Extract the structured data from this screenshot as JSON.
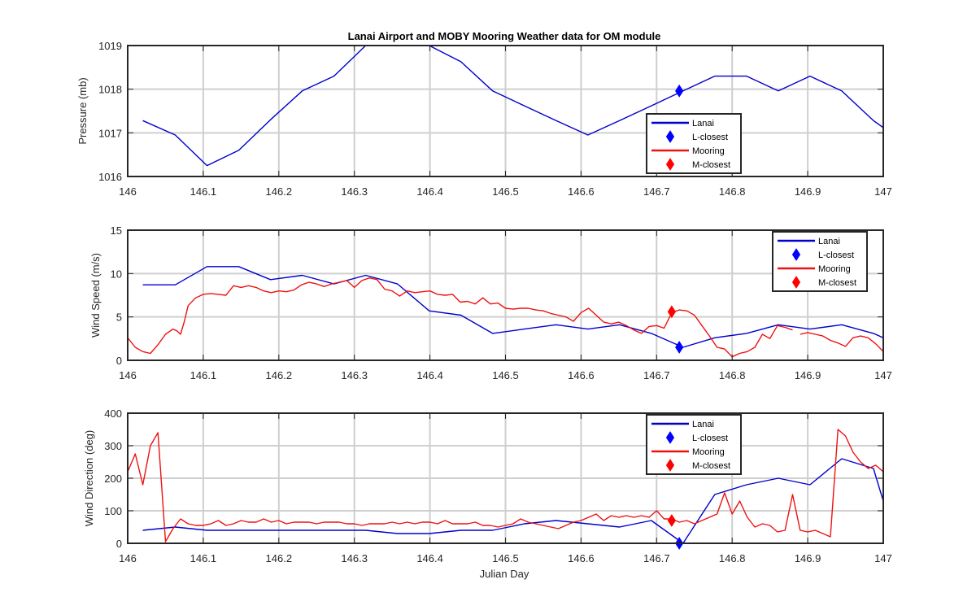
{
  "figure": {
    "title": "Lanai Airport and MOBY Mooring Weather data for OM module",
    "xlabel": "Julian Day"
  },
  "legend_labels": {
    "lanai": "Lanai",
    "l_closest": "L-closest",
    "mooring": "Mooring",
    "m_closest": "M-closest"
  },
  "colors": {
    "lanai": "#0000cc",
    "mooring": "#ee1111",
    "l_marker": "#0000ff",
    "m_marker": "#ff0000",
    "grid": "#cfcfcf"
  },
  "chart_data": [
    {
      "type": "line",
      "ylabel": "Pressure (mb)",
      "xlim": [
        146,
        147
      ],
      "ylim": [
        1016,
        1019
      ],
      "xticks": [
        146,
        146.1,
        146.2,
        146.3,
        146.4,
        146.5,
        146.6,
        146.7,
        146.8,
        146.9,
        147
      ],
      "xtick_labels": [
        "146",
        "146.1",
        "146.2",
        "146.3",
        "146.4",
        "146.5",
        "146.6",
        "146.7",
        "146.8",
        "146.9",
        "147"
      ],
      "yticks": [
        1016,
        1017,
        1018,
        1019
      ],
      "ytick_labels": [
        "1016",
        "1017",
        "1018",
        "1019"
      ],
      "legend_position": "bottom-right",
      "grid": true,
      "series": [
        {
          "name": "Lanai",
          "x": [
            146.02,
            146.063,
            146.105,
            146.147,
            146.189,
            146.231,
            146.273,
            146.315,
            146.357,
            146.399,
            146.441,
            146.483,
            146.525,
            146.567,
            146.609,
            146.651,
            146.693,
            146.735,
            146.777,
            146.819,
            146.861,
            146.903,
            146.945,
            146.987,
            147.0
          ],
          "y": [
            1017.28,
            1016.95,
            1016.25,
            1016.6,
            1017.3,
            1017.96,
            1018.3,
            1019.0,
            1019.0,
            1019.0,
            1018.63,
            1017.96,
            1017.62,
            1017.28,
            1016.95,
            1017.28,
            1017.62,
            1017.96,
            1018.3,
            1018.3,
            1017.96,
            1018.3,
            1017.96,
            1017.28,
            1017.12
          ]
        }
      ],
      "markers": [
        {
          "name": "L-closest",
          "x": 146.73,
          "y": 1017.96
        }
      ]
    },
    {
      "type": "line",
      "ylabel": "Wind Speed (m/s)",
      "xlim": [
        146,
        147
      ],
      "ylim": [
        0,
        15
      ],
      "xticks": [
        146,
        146.1,
        146.2,
        146.3,
        146.4,
        146.5,
        146.6,
        146.7,
        146.8,
        146.9,
        147
      ],
      "xtick_labels": [
        "146",
        "146.1",
        "146.2",
        "146.3",
        "146.4",
        "146.5",
        "146.6",
        "146.7",
        "146.8",
        "146.9",
        "147"
      ],
      "yticks": [
        0,
        5,
        10,
        15
      ],
      "ytick_labels": [
        "0",
        "5",
        "10",
        "15"
      ],
      "legend_position": "top-right",
      "grid": true,
      "series": [
        {
          "name": "Lanai",
          "x": [
            146.02,
            146.063,
            146.105,
            146.147,
            146.189,
            146.231,
            146.273,
            146.315,
            146.357,
            146.399,
            146.441,
            146.483,
            146.525,
            146.567,
            146.609,
            146.651,
            146.693,
            146.735,
            146.777,
            146.819,
            146.861,
            146.903,
            146.945,
            146.987,
            147.0
          ],
          "y": [
            8.7,
            8.7,
            10.8,
            10.8,
            9.3,
            9.8,
            8.8,
            9.8,
            8.8,
            5.7,
            5.2,
            3.1,
            3.6,
            4.1,
            3.6,
            4.1,
            3.1,
            1.5,
            2.6,
            3.1,
            4.1,
            3.6,
            4.1,
            3.1,
            2.6
          ]
        },
        {
          "name": "Mooring",
          "x": [
            146.0,
            146.01,
            146.02,
            146.03,
            146.04,
            146.05,
            146.06,
            146.065,
            146.07,
            146.075,
            146.08,
            146.09,
            146.1,
            146.11,
            146.12,
            146.13,
            146.14,
            146.15,
            146.16,
            146.17,
            146.18,
            146.19,
            146.2,
            146.21,
            146.22,
            146.23,
            146.24,
            146.25,
            146.26,
            146.27,
            146.28,
            146.29,
            146.3,
            146.31,
            146.32,
            146.33,
            146.34,
            146.35,
            146.36,
            146.37,
            146.38,
            146.39,
            146.4,
            146.41,
            146.42,
            146.43,
            146.44,
            146.45,
            146.46,
            146.47,
            146.48,
            146.49,
            146.5,
            146.51,
            146.52,
            146.53,
            146.54,
            146.55,
            146.56,
            146.57,
            146.58,
            146.59,
            146.6,
            146.61,
            146.62,
            146.63,
            146.64,
            146.65,
            146.66,
            146.67,
            146.68,
            146.69,
            146.7,
            146.71,
            146.72,
            146.73,
            146.74,
            146.75,
            146.76,
            146.77,
            146.78,
            146.79,
            146.8,
            146.81,
            146.82,
            146.83,
            146.84,
            146.85,
            146.86,
            146.87,
            146.88
          ],
          "y": [
            2.6,
            1.5,
            1.0,
            0.8,
            1.8,
            3.0,
            3.6,
            3.4,
            3.0,
            4.5,
            6.3,
            7.2,
            7.6,
            7.7,
            7.6,
            7.5,
            8.6,
            8.4,
            8.6,
            8.4,
            8.0,
            7.8,
            8.0,
            7.9,
            8.1,
            8.7,
            9.0,
            8.8,
            8.5,
            8.8,
            9.0,
            9.2,
            8.4,
            9.2,
            9.5,
            9.3,
            8.2,
            8.0,
            7.4,
            8.0,
            7.8,
            7.9,
            8.0,
            7.6,
            7.5,
            7.6,
            6.7,
            6.8,
            6.5,
            7.2,
            6.5,
            6.6,
            6.0,
            5.9,
            6.0,
            6.0,
            5.8,
            5.7,
            5.4,
            5.2,
            5.0,
            4.5,
            5.5,
            6.0,
            5.2,
            4.4,
            4.2,
            4.4,
            4.0,
            3.5,
            3.1,
            3.9,
            4.0,
            3.7,
            5.5,
            5.8,
            5.7,
            5.2,
            4.0,
            2.8,
            1.5,
            1.3,
            0.4,
            0.8,
            1.0,
            1.5,
            3.0,
            2.5,
            4.0,
            3.8,
            3.5
          ]
        },
        {
          "name": "Mooring",
          "x": [
            146.89,
            146.9,
            146.91,
            146.92,
            146.93,
            146.94,
            146.95,
            146.96,
            146.97,
            146.98,
            146.99,
            147.0
          ],
          "y": [
            3.0,
            3.2,
            3.0,
            2.8,
            2.3,
            2.0,
            1.6,
            2.6,
            2.8,
            2.6,
            1.9,
            1.0
          ]
        }
      ],
      "markers": [
        {
          "name": "L-closest",
          "x": 146.73,
          "y": 1.5
        },
        {
          "name": "M-closest",
          "x": 146.72,
          "y": 5.6
        }
      ]
    },
    {
      "type": "line",
      "ylabel": "Wind Direction (deg)",
      "xlim": [
        146,
        147
      ],
      "ylim": [
        0,
        400
      ],
      "xticks": [
        146,
        146.1,
        146.2,
        146.3,
        146.4,
        146.5,
        146.6,
        146.7,
        146.8,
        146.9,
        147
      ],
      "xtick_labels": [
        "146",
        "146.1",
        "146.2",
        "146.3",
        "146.4",
        "146.5",
        "146.6",
        "146.7",
        "146.8",
        "146.9",
        "147"
      ],
      "yticks": [
        0,
        100,
        200,
        300,
        400
      ],
      "ytick_labels": [
        "0",
        "100",
        "200",
        "300",
        "400"
      ],
      "legend_position": "top-center-right",
      "grid": true,
      "series": [
        {
          "name": "Lanai",
          "x": [
            146.02,
            146.063,
            146.105,
            146.147,
            146.189,
            146.231,
            146.273,
            146.315,
            146.357,
            146.399,
            146.441,
            146.483,
            146.525,
            146.567,
            146.609,
            146.651,
            146.693,
            146.735,
            146.777,
            146.819,
            146.861,
            146.903,
            146.945,
            146.987,
            147.0
          ],
          "y": [
            40,
            50,
            40,
            40,
            40,
            40,
            40,
            40,
            30,
            30,
            40,
            40,
            60,
            70,
            60,
            50,
            70,
            0,
            150,
            180,
            200,
            180,
            260,
            230,
            130
          ]
        },
        {
          "name": "Mooring",
          "x": [
            146.0,
            146.01,
            146.02,
            146.03,
            146.04,
            146.05,
            146.06,
            146.07,
            146.08,
            146.09,
            146.1,
            146.11,
            146.12,
            146.13,
            146.14,
            146.15,
            146.16,
            146.17,
            146.18,
            146.19,
            146.2,
            146.21,
            146.22,
            146.23,
            146.24,
            146.25,
            146.26,
            146.27,
            146.28,
            146.29,
            146.3,
            146.31,
            146.32,
            146.33,
            146.34,
            146.35,
            146.36,
            146.37,
            146.38,
            146.39,
            146.4,
            146.41,
            146.42,
            146.43,
            146.44,
            146.45,
            146.46,
            146.47,
            146.48,
            146.49,
            146.5,
            146.51,
            146.52,
            146.53,
            146.54,
            146.55,
            146.56,
            146.57,
            146.58,
            146.59,
            146.6,
            146.61,
            146.62,
            146.63,
            146.64,
            146.65,
            146.66,
            146.67,
            146.68,
            146.69,
            146.7,
            146.71,
            146.72,
            146.73,
            146.74,
            146.75,
            146.76,
            146.77,
            146.78,
            146.79,
            146.8,
            146.81,
            146.82,
            146.83,
            146.84,
            146.85,
            146.86,
            146.87,
            146.88,
            146.89,
            146.9,
            146.91,
            146.92,
            146.93,
            146.94,
            146.95,
            146.96,
            146.97,
            146.98,
            146.99,
            147.0
          ],
          "y": [
            220,
            275,
            180,
            300,
            340,
            5,
            45,
            75,
            60,
            55,
            55,
            60,
            70,
            55,
            60,
            70,
            65,
            65,
            75,
            65,
            70,
            60,
            65,
            65,
            65,
            60,
            65,
            65,
            65,
            60,
            60,
            55,
            60,
            60,
            60,
            65,
            60,
            65,
            60,
            65,
            65,
            60,
            70,
            60,
            60,
            60,
            65,
            55,
            55,
            50,
            55,
            60,
            75,
            65,
            60,
            55,
            50,
            45,
            55,
            65,
            70,
            80,
            90,
            70,
            85,
            80,
            85,
            80,
            85,
            80,
            100,
            75,
            75,
            65,
            70,
            60,
            70,
            80,
            90,
            155,
            90,
            130,
            80,
            50,
            60,
            55,
            35,
            40,
            150,
            40,
            35,
            40,
            30,
            20,
            350,
            330,
            280,
            250,
            230,
            240,
            220
          ]
        }
      ],
      "markers": [
        {
          "name": "L-closest",
          "x": 146.73,
          "y": 0
        },
        {
          "name": "M-closest",
          "x": 146.72,
          "y": 70
        }
      ]
    }
  ]
}
